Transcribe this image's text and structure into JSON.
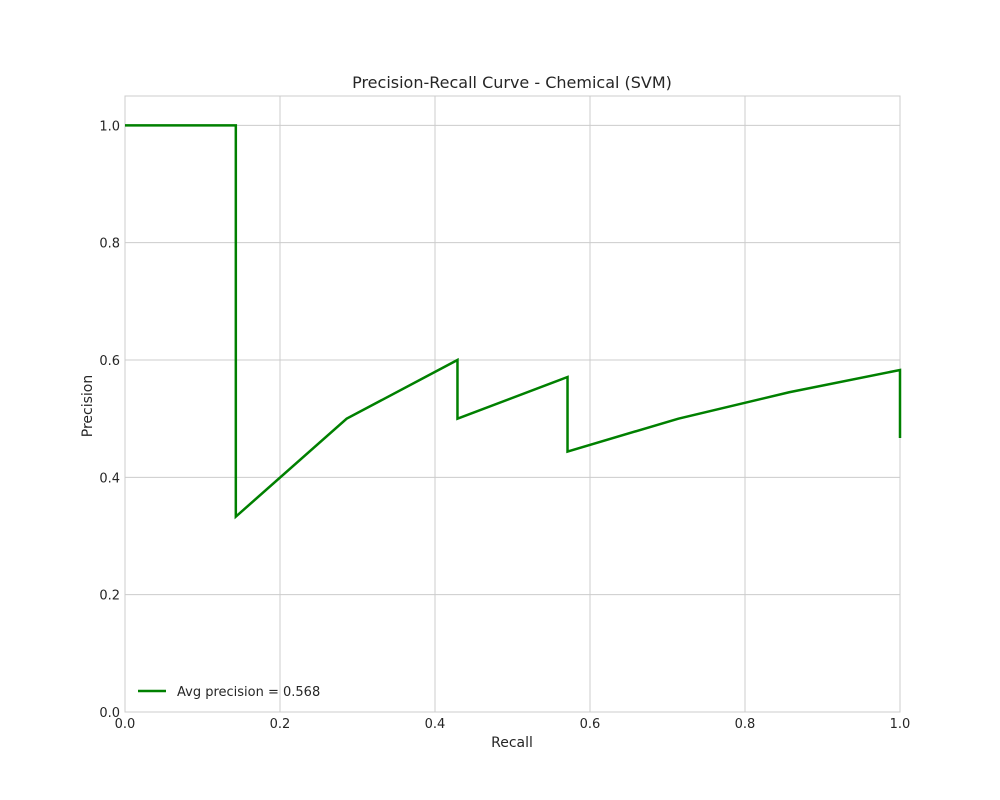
{
  "chart_data": {
    "type": "line",
    "title": "Precision-Recall Curve - Chemical (SVM)",
    "xlabel": "Recall",
    "ylabel": "Precision",
    "xlim": [
      0.0,
      1.0
    ],
    "ylim": [
      0.0,
      1.05
    ],
    "xticks": [
      0.0,
      0.2,
      0.4,
      0.6,
      0.8,
      1.0
    ],
    "xtick_labels": [
      "0.0",
      "0.2",
      "0.4",
      "0.6",
      "0.8",
      "1.0"
    ],
    "yticks": [
      0.0,
      0.2,
      0.4,
      0.6,
      0.8,
      1.0
    ],
    "ytick_labels": [
      "0.0",
      "0.2",
      "0.4",
      "0.6",
      "0.8",
      "1.0"
    ],
    "grid": true,
    "legend_position": "lower-left",
    "series": [
      {
        "name": "Avg precision = 0.568",
        "color": "#008000",
        "x": [
          0.0,
          0.143,
          0.143,
          0.286,
          0.429,
          0.429,
          0.571,
          0.571,
          0.714,
          0.857,
          1.0,
          1.0
        ],
        "y": [
          1.0,
          1.0,
          0.333,
          0.5,
          0.6,
          0.5,
          0.571,
          0.444,
          0.5,
          0.545,
          0.583,
          0.467
        ]
      }
    ]
  }
}
